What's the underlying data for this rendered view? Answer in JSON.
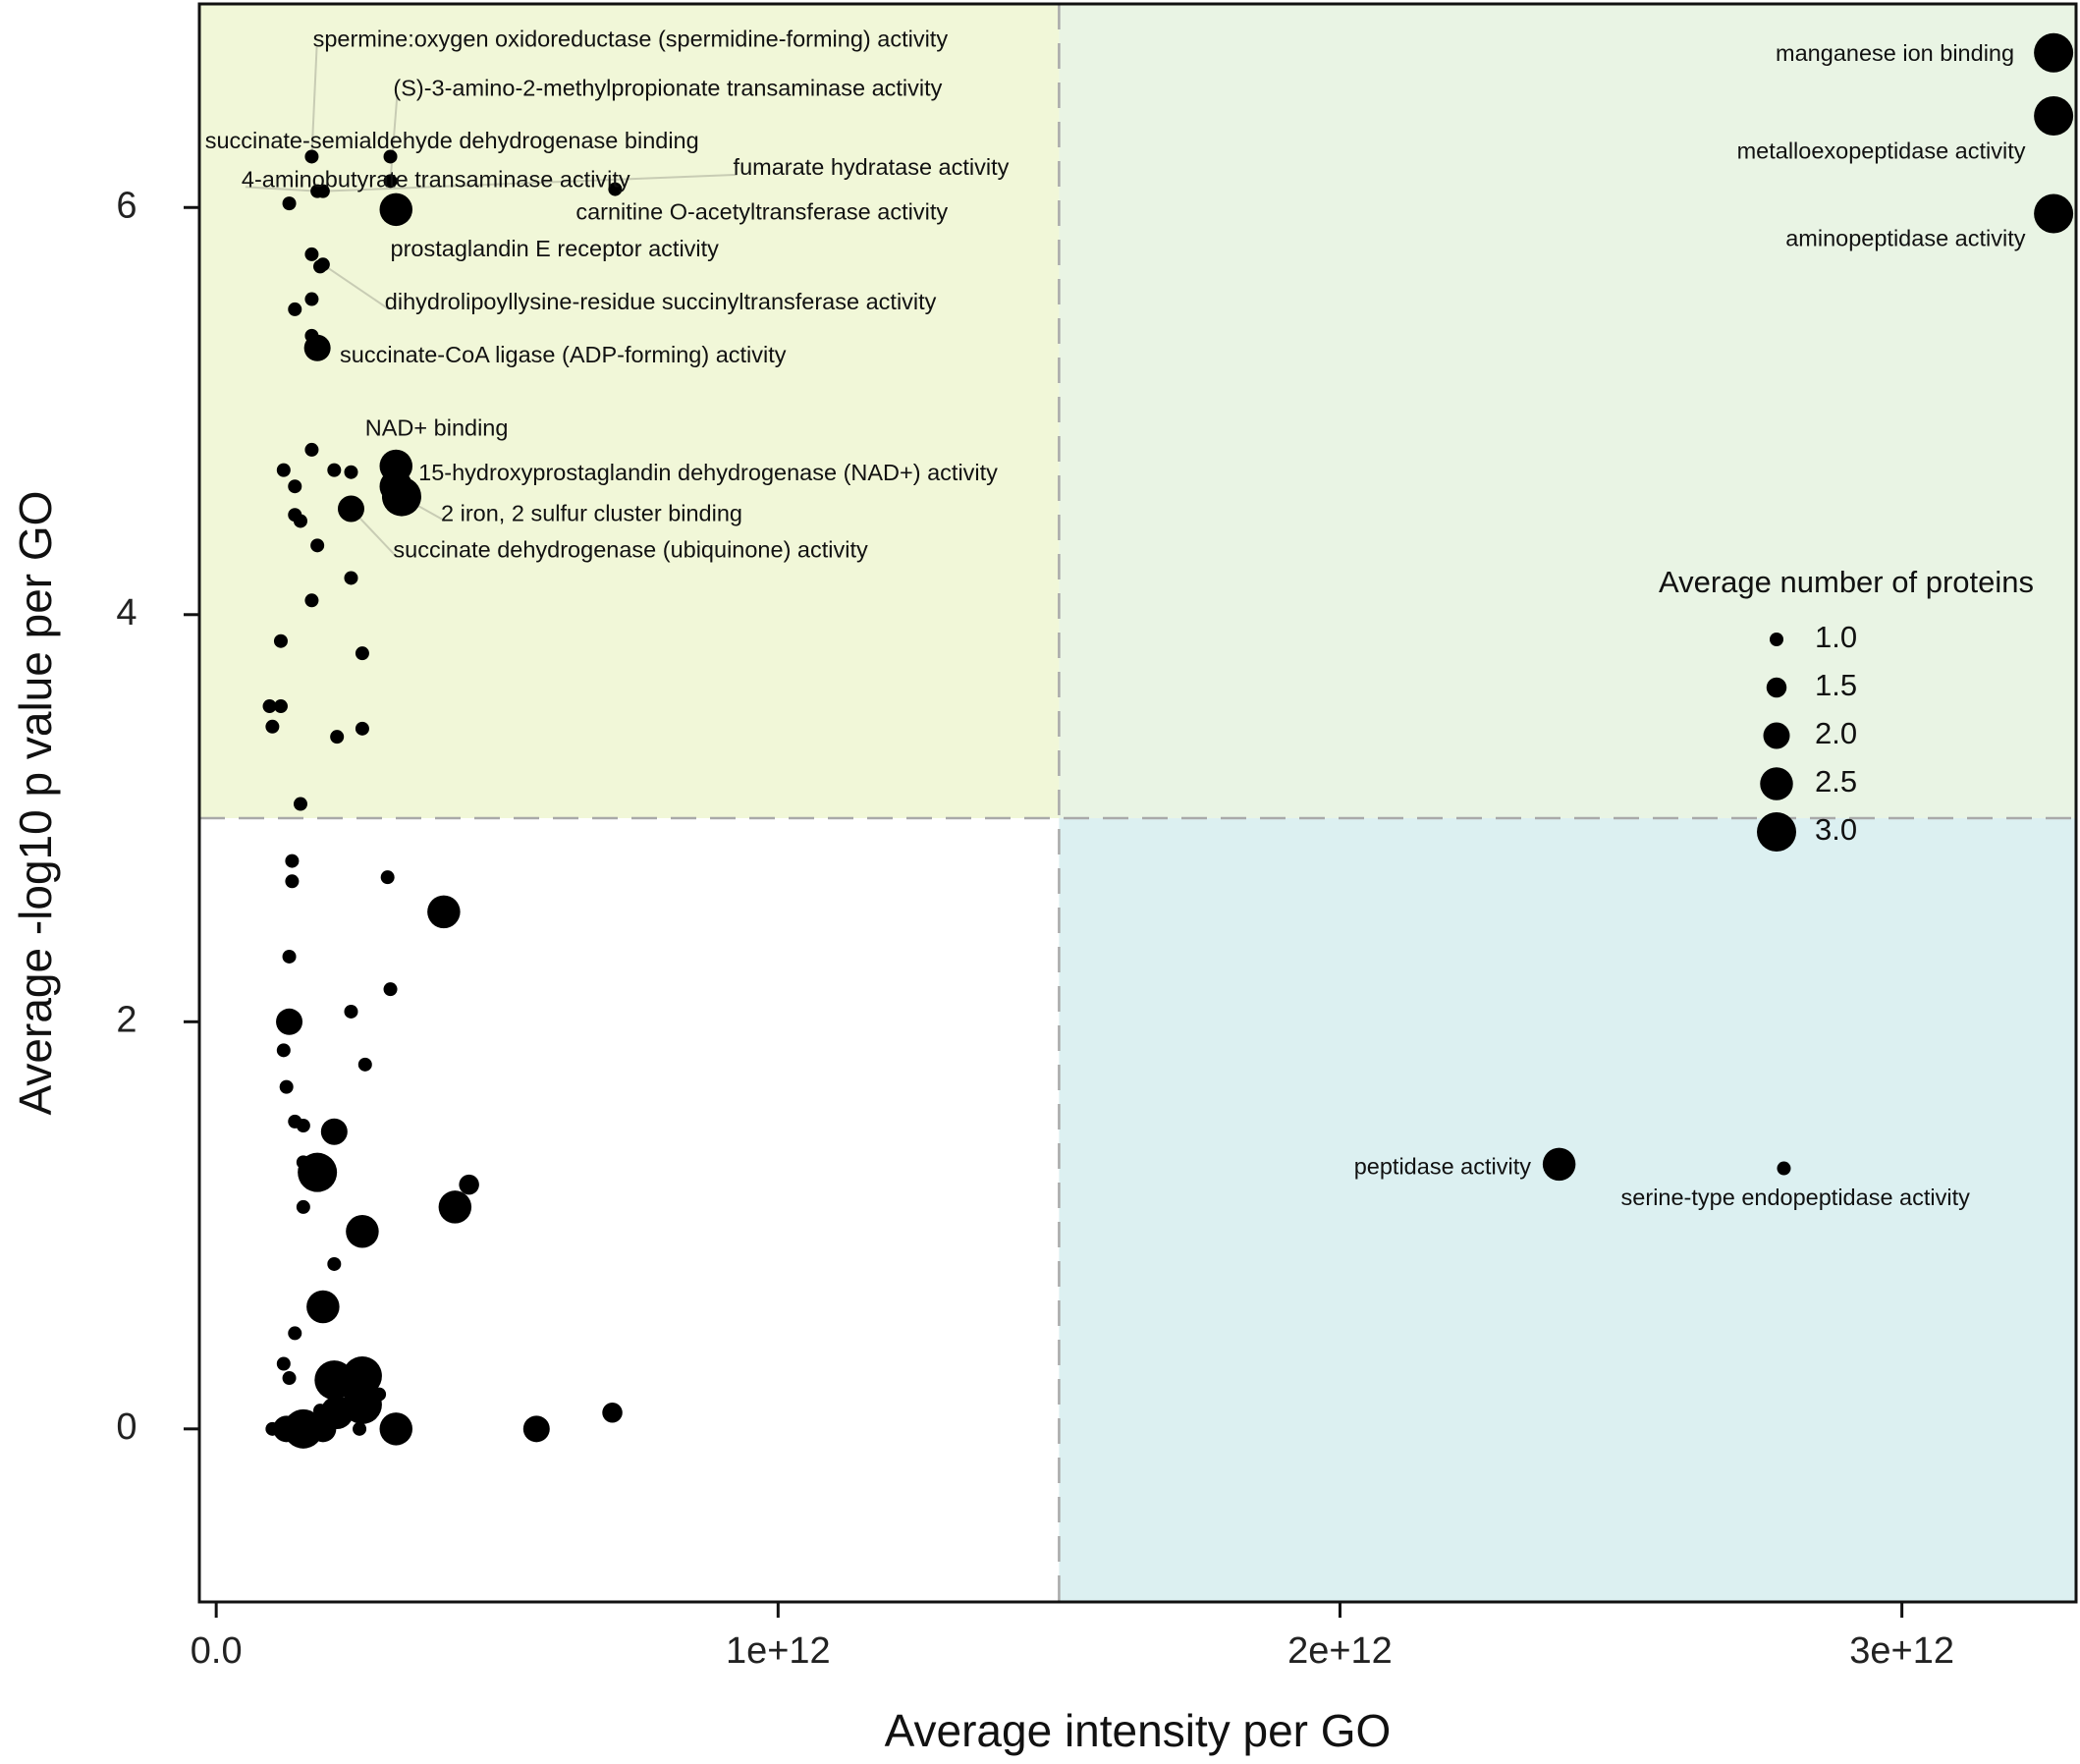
{
  "chart_data": {
    "type": "scatter",
    "xlabel": "Average intensity per GO",
    "ylabel": "Average -log10 p value per GO",
    "xlim": [
      -30000000000.0,
      3310000000000.0
    ],
    "ylim": [
      -0.85,
      7.0
    ],
    "x_ticks": [
      {
        "value": 0,
        "label": "0.0"
      },
      {
        "value": 1000000000000.0,
        "label": "1e+12"
      },
      {
        "value": 2000000000000.0,
        "label": "2e+12"
      },
      {
        "value": 3000000000000.0,
        "label": "3e+12"
      }
    ],
    "y_ticks": [
      {
        "value": 0,
        "label": "0"
      },
      {
        "value": 2,
        "label": "2"
      },
      {
        "value": 4,
        "label": "4"
      },
      {
        "value": 6,
        "label": "6"
      }
    ],
    "thresholds": {
      "x": 1500000000000.0,
      "y": 3
    },
    "quadrant_colors": {
      "top_left": "#f1f7d8",
      "top_right": "#e9f4e4",
      "bottom_left": "#ffffff",
      "bottom_right": "#dcf0f1"
    },
    "legend": {
      "title": "Average number of proteins",
      "placement": "right",
      "entries": [
        {
          "size": 1.0,
          "label": "1.0"
        },
        {
          "size": 1.5,
          "label": "1.5"
        },
        {
          "size": 2.0,
          "label": "2.0"
        },
        {
          "size": 2.5,
          "label": "2.5"
        },
        {
          "size": 3.0,
          "label": "3.0"
        }
      ]
    },
    "labeled_points": [
      {
        "label": "spermine:oxygen oxidoreductase (spermidine-forming) activity",
        "x": 170000000000.0,
        "y": 6.25,
        "size": 1.0,
        "label_x": 172000000000.0,
        "label_y": 6.82,
        "anchor": "start",
        "leader": true
      },
      {
        "label": "(S)-3-amino-2-methylpropionate transaminase activity",
        "x": 310000000000.0,
        "y": 6.13,
        "size": 1.0,
        "label_x": 315000000000.0,
        "label_y": 6.58,
        "anchor": "start",
        "leader": true
      },
      {
        "label": "succinate-semialdehyde dehydrogenase binding",
        "x": 310000000000.0,
        "y": 6.25,
        "size": 1.0,
        "label_x": -20000000000.0,
        "label_y": 6.32,
        "anchor": "start",
        "leader": false
      },
      {
        "label": "4-aminobutyrate transaminase activity",
        "x": 180000000000.0,
        "y": 6.08,
        "size": 1.0,
        "label_x": 45000000000.0,
        "label_y": 6.13,
        "anchor": "start",
        "leader": true
      },
      {
        "label": "fumarate hydratase activity",
        "x": 190000000000.0,
        "y": 6.08,
        "size": 1.0,
        "label_x": 920000000000.0,
        "label_y": 6.19,
        "anchor": "start",
        "leader": true
      },
      {
        "label": "carnitine O-acetyltransferase activity",
        "x": 710000000000.0,
        "y": 6.09,
        "size": 1.0,
        "label_x": 640000000000.0,
        "label_y": 5.97,
        "anchor": "start",
        "leader": false
      },
      {
        "label": "prostaglandin E receptor activity",
        "x": 320000000000.0,
        "y": 5.99,
        "size": 2.5,
        "label_x": 310000000000.0,
        "label_y": 5.79,
        "anchor": "start",
        "leader": false
      },
      {
        "label": "dihydrolipoyllysine-residue succinyltransferase activity",
        "x": 190000000000.0,
        "y": 5.72,
        "size": 1.0,
        "label_x": 300000000000.0,
        "label_y": 5.53,
        "anchor": "start",
        "leader": true
      },
      {
        "label": "succinate-CoA ligase (ADP-forming) activity",
        "x": 180000000000.0,
        "y": 5.31,
        "size": 2.0,
        "label_x": 220000000000.0,
        "label_y": 5.27,
        "anchor": "start",
        "leader": false
      },
      {
        "label": "NAD+ binding",
        "x": 320000000000.0,
        "y": 4.73,
        "size": 2.5,
        "label_x": 265000000000.0,
        "label_y": 4.91,
        "anchor": "start",
        "leader": false
      },
      {
        "label": "15-hydroxyprostaglandin dehydrogenase (NAD+) activity",
        "x": 320000000000.0,
        "y": 4.63,
        "size": 2.5,
        "label_x": 360000000000.0,
        "label_y": 4.69,
        "anchor": "start",
        "leader": false
      },
      {
        "label": "2 iron, 2 sulfur cluster binding",
        "x": 330000000000.0,
        "y": 4.58,
        "size": 3.0,
        "label_x": 400000000000.0,
        "label_y": 4.49,
        "anchor": "start",
        "leader": true
      },
      {
        "label": "succinate dehydrogenase (ubiquinone) activity",
        "x": 240000000000.0,
        "y": 4.52,
        "size": 2.0,
        "label_x": 315000000000.0,
        "label_y": 4.31,
        "anchor": "start",
        "leader": true
      },
      {
        "label": "manganese ion binding",
        "x": 3270000000000.0,
        "y": 6.76,
        "size": 3.0,
        "label_x": 3200000000000.0,
        "label_y": 6.75,
        "anchor": "end",
        "leader": false
      },
      {
        "label": "metalloexopeptidase activity",
        "x": 3270000000000.0,
        "y": 6.45,
        "size": 3.0,
        "label_x": 3220000000000.0,
        "label_y": 6.27,
        "anchor": "end",
        "leader": false
      },
      {
        "label": "aminopeptidase activity",
        "x": 3270000000000.0,
        "y": 5.97,
        "size": 3.0,
        "label_x": 3220000000000.0,
        "label_y": 5.84,
        "anchor": "end",
        "leader": false
      },
      {
        "label": "peptidase activity",
        "x": 2390000000000.0,
        "y": 1.3,
        "size": 2.5,
        "label_x": 2340000000000.0,
        "label_y": 1.28,
        "anchor": "end",
        "leader": false
      },
      {
        "label": "serine-type endopeptidase activity",
        "x": 2790000000000.0,
        "y": 1.28,
        "size": 1.0,
        "label_x": 2500000000000.0,
        "label_y": 1.13,
        "anchor": "start",
        "leader": false
      }
    ],
    "points": [
      {
        "x": 130000000000.0,
        "y": 6.02,
        "size": 1.0
      },
      {
        "x": 170000000000.0,
        "y": 5.77,
        "size": 1.0
      },
      {
        "x": 185000000000.0,
        "y": 5.71,
        "size": 1.0
      },
      {
        "x": 170000000000.0,
        "y": 5.55,
        "size": 1.0
      },
      {
        "x": 140000000000.0,
        "y": 5.5,
        "size": 1.0
      },
      {
        "x": 170000000000.0,
        "y": 5.37,
        "size": 1.0
      },
      {
        "x": 170000000000.0,
        "y": 4.81,
        "size": 1.0
      },
      {
        "x": 120000000000.0,
        "y": 4.71,
        "size": 1.0
      },
      {
        "x": 210000000000.0,
        "y": 4.71,
        "size": 1.0
      },
      {
        "x": 240000000000.0,
        "y": 4.7,
        "size": 1.0
      },
      {
        "x": 140000000000.0,
        "y": 4.63,
        "size": 1.0
      },
      {
        "x": 140000000000.0,
        "y": 4.49,
        "size": 1.0
      },
      {
        "x": 150000000000.0,
        "y": 4.46,
        "size": 1.0
      },
      {
        "x": 180000000000.0,
        "y": 4.34,
        "size": 1.0
      },
      {
        "x": 240000000000.0,
        "y": 4.18,
        "size": 1.0
      },
      {
        "x": 170000000000.0,
        "y": 4.07,
        "size": 1.0
      },
      {
        "x": 115000000000.0,
        "y": 3.87,
        "size": 1.0
      },
      {
        "x": 260000000000.0,
        "y": 3.81,
        "size": 1.0
      },
      {
        "x": 95000000000.0,
        "y": 3.55,
        "size": 1.0
      },
      {
        "x": 115000000000.0,
        "y": 3.55,
        "size": 1.0
      },
      {
        "x": 100000000000.0,
        "y": 3.45,
        "size": 1.0
      },
      {
        "x": 260000000000.0,
        "y": 3.44,
        "size": 1.0
      },
      {
        "x": 215000000000.0,
        "y": 3.4,
        "size": 1.0
      },
      {
        "x": 150000000000.0,
        "y": 3.07,
        "size": 1.0
      },
      {
        "x": 135000000000.0,
        "y": 2.79,
        "size": 1.0
      },
      {
        "x": 135000000000.0,
        "y": 2.69,
        "size": 1.0
      },
      {
        "x": 305000000000.0,
        "y": 2.71,
        "size": 1.0
      },
      {
        "x": 405000000000.0,
        "y": 2.54,
        "size": 2.5
      },
      {
        "x": 130000000000.0,
        "y": 2.32,
        "size": 1.0
      },
      {
        "x": 310000000000.0,
        "y": 2.16,
        "size": 1.0
      },
      {
        "x": 240000000000.0,
        "y": 2.05,
        "size": 1.0
      },
      {
        "x": 130000000000.0,
        "y": 2.0,
        "size": 2.0
      },
      {
        "x": 120000000000.0,
        "y": 1.86,
        "size": 1.0
      },
      {
        "x": 265000000000.0,
        "y": 1.79,
        "size": 1.0
      },
      {
        "x": 125000000000.0,
        "y": 1.68,
        "size": 1.0
      },
      {
        "x": 140000000000.0,
        "y": 1.51,
        "size": 1.0
      },
      {
        "x": 155000000000.0,
        "y": 1.49,
        "size": 1.0
      },
      {
        "x": 210000000000.0,
        "y": 1.46,
        "size": 2.0
      },
      {
        "x": 155000000000.0,
        "y": 1.31,
        "size": 1.0
      },
      {
        "x": 180000000000.0,
        "y": 1.26,
        "size": 3.0
      },
      {
        "x": 450000000000.0,
        "y": 1.2,
        "size": 1.5
      },
      {
        "x": 155000000000.0,
        "y": 1.09,
        "size": 1.0
      },
      {
        "x": 425000000000.0,
        "y": 1.09,
        "size": 2.5
      },
      {
        "x": 260000000000.0,
        "y": 0.97,
        "size": 2.5
      },
      {
        "x": 210000000000.0,
        "y": 0.81,
        "size": 1.0
      },
      {
        "x": 190000000000.0,
        "y": 0.6,
        "size": 2.5
      },
      {
        "x": 140000000000.0,
        "y": 0.47,
        "size": 1.0
      },
      {
        "x": 120000000000.0,
        "y": 0.32,
        "size": 1.0
      },
      {
        "x": 130000000000.0,
        "y": 0.25,
        "size": 1.0
      },
      {
        "x": 210000000000.0,
        "y": 0.24,
        "size": 3.0
      },
      {
        "x": 260000000000.0,
        "y": 0.26,
        "size": 3.0
      },
      {
        "x": 290000000000.0,
        "y": 0.17,
        "size": 1.0
      },
      {
        "x": 260000000000.0,
        "y": 0.12,
        "size": 3.0
      },
      {
        "x": 215000000000.0,
        "y": 0.08,
        "size": 2.5
      },
      {
        "x": 185000000000.0,
        "y": 0.09,
        "size": 1.0
      },
      {
        "x": 100000000000.0,
        "y": 0.0,
        "size": 1.0
      },
      {
        "x": 125000000000.0,
        "y": 0.0,
        "size": 2.0
      },
      {
        "x": 155000000000.0,
        "y": 0.0,
        "size": 3.0
      },
      {
        "x": 190000000000.0,
        "y": 0.0,
        "size": 2.0
      },
      {
        "x": 255000000000.0,
        "y": 0.0,
        "size": 1.0
      },
      {
        "x": 320000000000.0,
        "y": 0.0,
        "size": 2.5
      },
      {
        "x": 570000000000.0,
        "y": 0.0,
        "size": 2.0
      },
      {
        "x": 705000000000.0,
        "y": 0.08,
        "size": 1.5
      }
    ]
  }
}
